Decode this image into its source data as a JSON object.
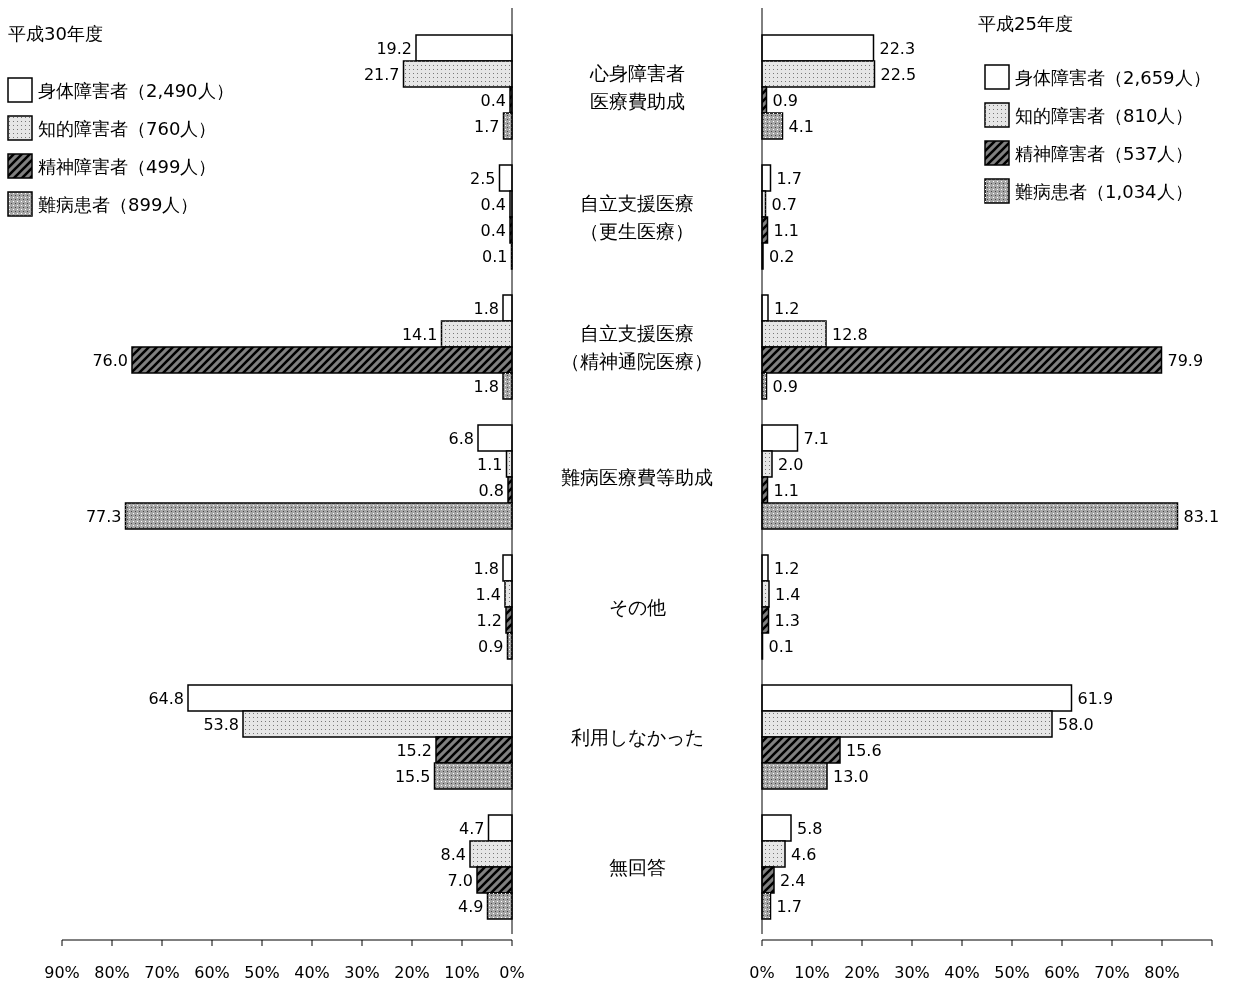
{
  "chart_data": [
    {
      "type": "bar",
      "orientation": "horizontal",
      "title": "平成30年度",
      "categories": [
        "心身障害者医療費助成",
        "自立支援医療（更生医療）",
        "自立支援医療（精神通院医療）",
        "難病医療費等助成",
        "その他",
        "利用しなかった",
        "無回答"
      ],
      "series": [
        {
          "name": "身体障害者（2,490人）",
          "color": "#ffffff",
          "values": [
            19.2,
            2.5,
            1.8,
            6.8,
            1.8,
            64.8,
            4.7
          ],
          "value_labels": [
            "19.2",
            "2.5",
            "1.8",
            "6.8",
            "1.8",
            "64.8",
            "4.7"
          ]
        },
        {
          "name": "知的障害者（760人）",
          "color": "#e6e6e6",
          "values": [
            21.7,
            0.4,
            14.1,
            1.1,
            1.4,
            53.8,
            8.4
          ],
          "value_labels": [
            "21.7",
            "0.4",
            "14.1",
            "1.1",
            "1.4",
            "53.8",
            "8.4"
          ]
        },
        {
          "name": "精神障害者（499人）",
          "color": "#808080",
          "values": [
            0.4,
            0.4,
            76.0,
            0.8,
            1.2,
            15.2,
            7.0
          ],
          "value_labels": [
            "0.4",
            "0.4",
            "76.0",
            "0.8",
            "1.2",
            "15.2",
            "7.0"
          ]
        },
        {
          "name": "難病患者（899人）",
          "color": "#a6a6a6",
          "values": [
            1.7,
            0.1,
            1.8,
            77.3,
            0.9,
            15.5,
            4.9
          ],
          "value_labels": [
            "1.7",
            "0.1",
            "1.8",
            "77.3",
            "0.9",
            "15.5",
            "4.9"
          ]
        }
      ],
      "xlim": [
        90,
        0
      ],
      "xticks": [
        {
          "value": 90,
          "label": "90%"
        },
        {
          "value": 80,
          "label": "80%"
        },
        {
          "value": 70,
          "label": "70%"
        },
        {
          "value": 60,
          "label": "60%"
        },
        {
          "value": 50,
          "label": "50%"
        },
        {
          "value": 40,
          "label": "40%"
        },
        {
          "value": 30,
          "label": "30%"
        },
        {
          "value": 20,
          "label": "20%"
        },
        {
          "value": 10,
          "label": "10%"
        },
        {
          "value": 0,
          "label": "0%"
        }
      ],
      "legend": "top left",
      "tick_labels": "x"
    },
    {
      "type": "bar",
      "orientation": "horizontal",
      "title": "平成25年度",
      "categories": [
        "心身障害者医療費助成",
        "自立支援医療（更生医療）",
        "自立支援医療（精神通院医療）",
        "難病医療費等助成",
        "その他",
        "利用しなかった",
        "無回答"
      ],
      "series": [
        {
          "name": "身体障害者（2,659人）",
          "color": "#ffffff",
          "values": [
            22.3,
            1.7,
            1.2,
            7.1,
            1.2,
            61.9,
            5.8
          ],
          "value_labels": [
            "22.3",
            "1.7",
            "1.2",
            "7.1",
            "1.2",
            "61.9",
            "5.8"
          ]
        },
        {
          "name": "知的障害者（810人）",
          "color": "#e6e6e6",
          "values": [
            22.5,
            0.7,
            12.8,
            2.0,
            1.4,
            58.0,
            4.6
          ],
          "value_labels": [
            "22.5",
            "0.7",
            "12.8",
            "2.0",
            "1.4",
            "58.0",
            "4.6"
          ]
        },
        {
          "name": "精神障害者（537人）",
          "color": "#808080",
          "values": [
            0.9,
            1.1,
            79.9,
            1.1,
            1.3,
            15.6,
            2.4
          ],
          "value_labels": [
            "0.9",
            "1.1",
            "79.9",
            "1.1",
            "1.3",
            "15.6",
            "2.4"
          ]
        },
        {
          "name": "難病患者（1,034人）",
          "color": "#a6a6a6",
          "values": [
            4.1,
            0.2,
            0.9,
            83.1,
            0.1,
            13.0,
            1.7
          ],
          "value_labels": [
            "4.1",
            "0.2",
            "0.9",
            "83.1",
            "0.1",
            "13.0",
            "1.7"
          ]
        }
      ],
      "xlim": [
        0,
        90
      ],
      "xticks": [
        {
          "value": 0,
          "label": "0%"
        },
        {
          "value": 10,
          "label": "10%"
        },
        {
          "value": 20,
          "label": "20%"
        },
        {
          "value": 30,
          "label": "30%"
        },
        {
          "value": 40,
          "label": "40%"
        },
        {
          "value": 50,
          "label": "50%"
        },
        {
          "value": 60,
          "label": "60%"
        },
        {
          "value": 70,
          "label": "70%"
        },
        {
          "value": 80,
          "label": "80%"
        },
        {
          "value": 90,
          "label": null
        }
      ],
      "legend": "top right"
    }
  ]
}
